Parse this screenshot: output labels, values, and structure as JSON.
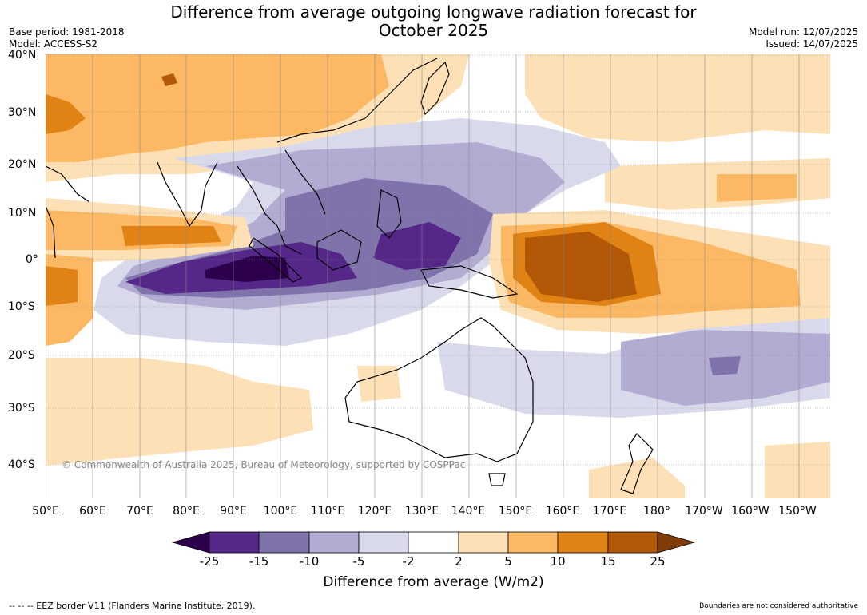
{
  "title": "Difference from average outgoing longwave radiation forecast for October 2025",
  "title_line1": "Difference from average outgoing longwave radiation forecast for",
  "title_line2": "October 2025",
  "meta_left": {
    "base_period": "Base period: 1981-2018",
    "model": "Model: ACCESS-S2"
  },
  "meta_right": {
    "model_run": "Model run: 12/07/2025",
    "issued": "Issued: 14/07/2025"
  },
  "copyright": "© Commonwealth of Australia 2025, Bureau of Meteorology, supported by COSPPac",
  "lon_labels": [
    "50°E",
    "60°E",
    "70°E",
    "80°E",
    "90°E",
    "100°E",
    "110°E",
    "120°E",
    "130°E",
    "140°E",
    "150°E",
    "160°E",
    "170°E",
    "180°",
    "170°W",
    "160°W",
    "150°W"
  ],
  "lat_labels": [
    "40°N",
    "30°N",
    "20°N",
    "10°N",
    "0°",
    "10°S",
    "20°S",
    "30°S",
    "40°S"
  ],
  "colorbar": {
    "label": "Difference from average (W/m2)",
    "ticks": [
      "-25",
      "-15",
      "-10",
      "-5",
      "-2",
      "2",
      "5",
      "10",
      "15",
      "25"
    ],
    "colors": [
      "#2d004b",
      "#542788",
      "#8073ac",
      "#b2abd2",
      "#d8daeb",
      "#ffffff",
      "#fee0b6",
      "#fdb863",
      "#e08214",
      "#b35806",
      "#7f3b08"
    ]
  },
  "footer_left": "--  --  -- EEZ border V11 (Flanders Marine Institute, 2019).",
  "footer_right": "Boundaries are not considered authoritative"
}
